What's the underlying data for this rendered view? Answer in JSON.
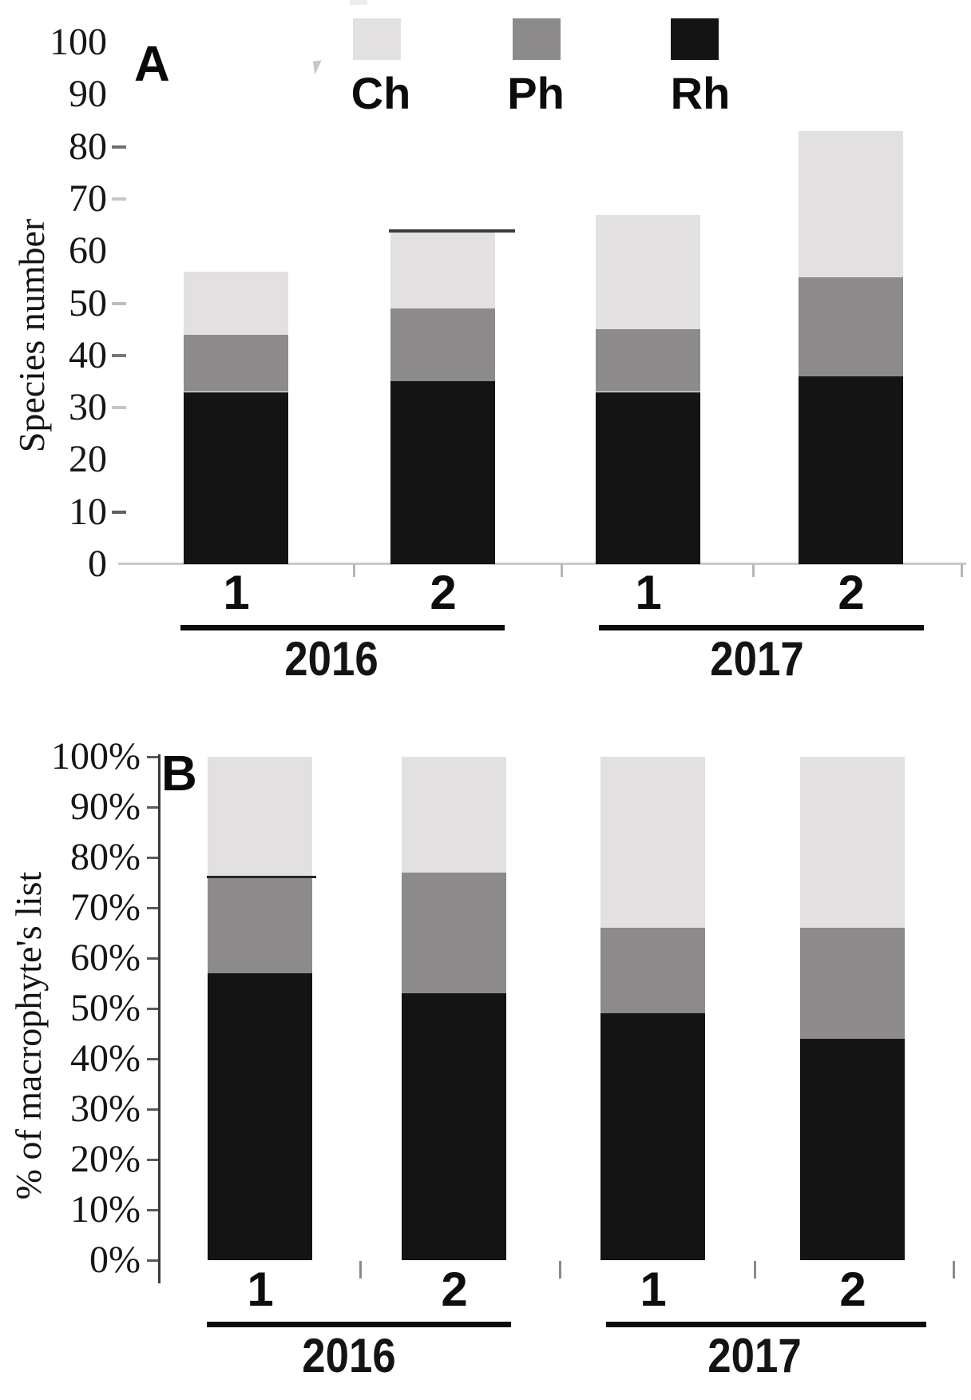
{
  "figure": {
    "panels": [
      {
        "label": "A"
      },
      {
        "label": "B"
      }
    ]
  },
  "legend": {
    "position": "top",
    "items": [
      {
        "label": "Ch",
        "color": "#e2e0e0"
      },
      {
        "label": "Ph",
        "color": "#8c8a8a"
      },
      {
        "label": "Rh",
        "color": "#141414"
      }
    ]
  },
  "chart_data": [
    {
      "panel": "A",
      "type": "bar",
      "stacked": true,
      "title": "",
      "ylabel": "Species number",
      "ylim": [
        0,
        100
      ],
      "grid": false,
      "yticks": [
        0,
        10,
        20,
        30,
        40,
        50,
        60,
        70,
        80,
        90,
        100
      ],
      "ytick_labels": [
        "0",
        "10",
        "20",
        "30",
        "40",
        "50",
        "60",
        "70",
        "80",
        "90",
        "100"
      ],
      "groups": [
        {
          "label": "2016",
          "categories": [
            "1",
            "2"
          ]
        },
        {
          "label": "2017",
          "categories": [
            "1",
            "2"
          ]
        }
      ],
      "categories": [
        "1",
        "2",
        "1",
        "2"
      ],
      "stack_order_bottom_to_top": [
        "Rh",
        "Ph",
        "Ch"
      ],
      "series": [
        {
          "name": "Ch",
          "values": [
            12,
            15,
            22,
            28
          ]
        },
        {
          "name": "Ph",
          "values": [
            11,
            14,
            12,
            19
          ]
        },
        {
          "name": "Rh",
          "values": [
            33,
            35,
            33,
            36
          ]
        }
      ],
      "bar_totals": [
        56,
        64,
        67,
        83
      ],
      "legend_position": "top"
    },
    {
      "panel": "B",
      "type": "bar",
      "stacked": true,
      "percent": true,
      "title": "",
      "ylabel": "% of macrophyte's list",
      "ylim": [
        0,
        100
      ],
      "grid": false,
      "yticks": [
        0,
        10,
        20,
        30,
        40,
        50,
        60,
        70,
        80,
        90,
        100
      ],
      "ytick_labels": [
        "0%",
        "10%",
        "20%",
        "30%",
        "40%",
        "50%",
        "60%",
        "70%",
        "80%",
        "90%",
        "100%"
      ],
      "groups": [
        {
          "label": "2016",
          "categories": [
            "1",
            "2"
          ]
        },
        {
          "label": "2017",
          "categories": [
            "1",
            "2"
          ]
        }
      ],
      "categories": [
        "1",
        "2",
        "1",
        "2"
      ],
      "stack_order_bottom_to_top": [
        "Rh",
        "Ph",
        "Ch"
      ],
      "series": [
        {
          "name": "Ch",
          "values": [
            24,
            23,
            34,
            34
          ]
        },
        {
          "name": "Ph",
          "values": [
            19,
            24,
            17,
            22
          ]
        },
        {
          "name": "Rh",
          "values": [
            57,
            53,
            49,
            44
          ]
        }
      ],
      "bar_totals": [
        100,
        100,
        100,
        100
      ]
    }
  ]
}
